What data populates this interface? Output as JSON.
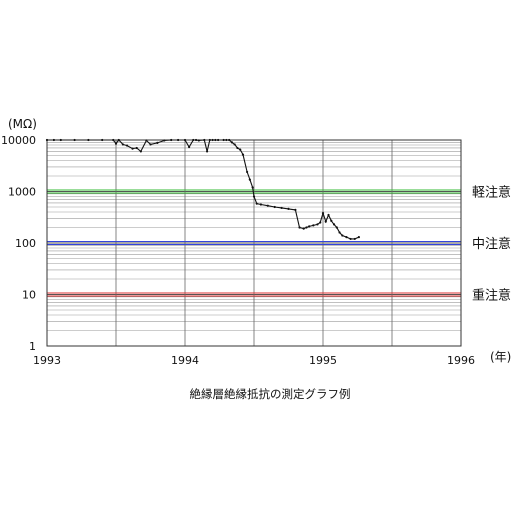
{
  "chart_data": {
    "type": "line",
    "title": "絶縁層絶縁抵抗の測定グラフ例",
    "ylabel": "(MΩ)",
    "xlabel": "(年)",
    "y_scale": "log",
    "ylim": [
      1,
      10000
    ],
    "xlim": [
      1993,
      1996
    ],
    "grid": true,
    "y_ticks": [
      "10000",
      "1000",
      "100",
      "10",
      "1"
    ],
    "x_ticks": [
      "1993",
      "1994",
      "1995",
      "1996"
    ],
    "thresholds": [
      {
        "label": "軽注意",
        "value": 1000,
        "color": "#33bb33"
      },
      {
        "label": "中注意",
        "value": 100,
        "color": "#3344dd"
      },
      {
        "label": "重注意",
        "value": 10,
        "color": "#dd3333"
      }
    ],
    "series": [
      {
        "color": "#111111",
        "x": [
          1993.0,
          1993.05,
          1993.1,
          1993.2,
          1993.3,
          1993.4,
          1993.48,
          1993.5,
          1993.52,
          1993.55,
          1993.58,
          1993.62,
          1993.65,
          1993.68,
          1993.72,
          1993.75,
          1993.8,
          1993.85,
          1993.9,
          1993.95,
          1994.0,
          1994.03,
          1994.06,
          1994.08,
          1994.1,
          1994.14,
          1994.16,
          1994.18,
          1994.2,
          1994.22,
          1994.24,
          1994.28,
          1994.3,
          1994.32,
          1994.34,
          1994.36,
          1994.38,
          1994.4,
          1994.42,
          1994.45,
          1994.47,
          1994.49,
          1994.5,
          1994.52,
          1994.55,
          1994.6,
          1994.65,
          1994.7,
          1994.75,
          1994.8,
          1994.83,
          1994.86,
          1994.88,
          1994.9,
          1994.93,
          1994.96,
          1994.98,
          1995.0,
          1995.02,
          1995.04,
          1995.06,
          1995.08,
          1995.1,
          1995.12,
          1995.14,
          1995.17,
          1995.2,
          1995.23,
          1995.26
        ],
        "values": [
          10000,
          10000,
          10000,
          10000,
          10000,
          10000,
          10000,
          8500,
          10000,
          8200,
          7800,
          6800,
          7000,
          6000,
          9800,
          8200,
          8800,
          9800,
          10000,
          10000,
          10000,
          7300,
          10000,
          10000,
          9800,
          10000,
          6000,
          10000,
          10000,
          10000,
          10000,
          10000,
          10000,
          10000,
          9000,
          8200,
          7000,
          6500,
          5200,
          2400,
          1700,
          1200,
          800,
          580,
          560,
          530,
          500,
          480,
          460,
          440,
          200,
          190,
          200,
          210,
          220,
          230,
          250,
          380,
          260,
          350,
          270,
          230,
          200,
          160,
          140,
          130,
          120,
          120,
          130
        ]
      }
    ]
  }
}
